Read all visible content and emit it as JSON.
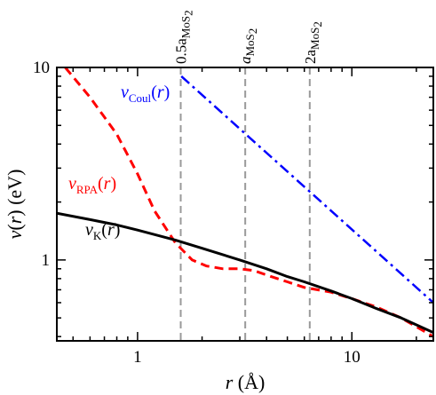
{
  "chart_data": {
    "type": "line",
    "x_scale": "log",
    "y_scale": "log",
    "xlim": [
      0.42,
      24
    ],
    "ylim": [
      0.38,
      10
    ],
    "xlabel_var": "r",
    "xlabel_unit": "(Å)",
    "ylabel_var": "v(r)",
    "ylabel_unit": "(eV)",
    "x_ticks": [
      {
        "value": 1,
        "label": "1"
      },
      {
        "value": 10,
        "label": "10"
      }
    ],
    "y_ticks": [
      {
        "value": 1,
        "label": "1"
      },
      {
        "value": 10,
        "label": "10"
      }
    ],
    "reference_lines": [
      {
        "x": 1.59,
        "label_main": "0.5a",
        "label_sub": "MoS",
        "label_subsub": "2"
      },
      {
        "x": 3.18,
        "label_main": "a",
        "label_sub": "MoS",
        "label_subsub": "2"
      },
      {
        "x": 6.36,
        "label_main": "2a",
        "label_sub": "MoS",
        "label_subsub": "2"
      }
    ],
    "series": [
      {
        "name": "v_Coul(r)",
        "label_main": "v",
        "label_sub": "Coul",
        "label_tail": "(r)",
        "color": "#0000ff",
        "style": "dashdot",
        "x": [
          1.6,
          3.2,
          6.4,
          12,
          24
        ],
        "y": [
          9.0,
          4.5,
          2.25,
          1.2,
          0.6
        ]
      },
      {
        "name": "v_RPA(r)",
        "label_main": "v",
        "label_sub": "RPA",
        "label_tail": "(r)",
        "color": "#ff0000",
        "style": "dashed",
        "x": [
          0.46,
          0.6,
          0.8,
          1.0,
          1.2,
          1.5,
          1.8,
          2.1,
          2.5,
          3.0,
          3.5,
          4.2,
          5.0,
          6.0,
          8.0,
          10.0,
          13.0,
          17.0,
          20.0,
          24.0
        ],
        "y": [
          10.0,
          7.0,
          4.5,
          2.8,
          1.8,
          1.23,
          1.0,
          0.93,
          0.9,
          0.9,
          0.88,
          0.82,
          0.77,
          0.72,
          0.68,
          0.63,
          0.57,
          0.5,
          0.45,
          0.4
        ]
      },
      {
        "name": "v_K(r)",
        "label_main": "v",
        "label_sub": "K",
        "label_tail": "(r)",
        "color": "#000000",
        "style": "solid",
        "x": [
          0.42,
          0.6,
          0.8,
          1.0,
          1.5,
          2.0,
          3.0,
          4.0,
          5.0,
          6.0,
          8.0,
          10.0,
          13.0,
          17.0,
          24.0
        ],
        "y": [
          1.75,
          1.62,
          1.52,
          1.43,
          1.27,
          1.15,
          1.0,
          0.9,
          0.82,
          0.77,
          0.69,
          0.63,
          0.56,
          0.5,
          0.42
        ]
      }
    ]
  }
}
